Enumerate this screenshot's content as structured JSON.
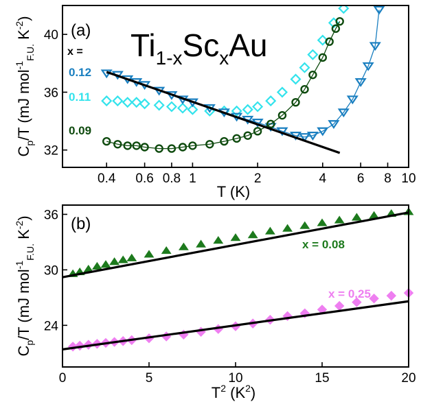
{
  "chart_data": [
    {
      "panel_label": "(a)",
      "type": "scatter",
      "annotation": "Ti1-xScxAu",
      "legend_header": "x =",
      "xlabel": "T (K)",
      "ylabel": "Cp/T (mJ mol-1F.U. K-2)",
      "xscale": "log",
      "xlim": [
        0.25,
        10
      ],
      "ylim": [
        30.8,
        42
      ],
      "xticks": [
        0.4,
        0.6,
        0.8,
        1,
        2,
        4,
        6,
        8,
        10
      ],
      "xtick_labels": [
        "0.4",
        "0.6",
        "0.8",
        "1",
        "2",
        "4",
        "6",
        "8",
        "10"
      ],
      "yticks": [
        32,
        36,
        40
      ],
      "ytick_labels": [
        "32",
        "36",
        "40"
      ],
      "series": [
        {
          "name": "0.12",
          "color": "#1a7fc0",
          "marker": "triangle-down",
          "x": [
            0.4,
            0.45,
            0.5,
            0.55,
            0.6,
            0.7,
            0.8,
            0.9,
            1.0,
            1.2,
            1.4,
            1.6,
            1.8,
            2.0,
            2.3,
            2.6,
            3.0,
            3.3,
            3.6,
            4.0,
            4.5,
            5.0,
            5.5,
            6.0,
            6.5,
            7.0,
            7.3
          ],
          "y": [
            37.3,
            37.2,
            36.9,
            36.7,
            36.5,
            36.1,
            35.8,
            35.5,
            35.3,
            34.9,
            34.6,
            34.3,
            34.1,
            33.9,
            33.6,
            33.3,
            33.0,
            32.9,
            33.0,
            33.3,
            33.8,
            34.6,
            35.5,
            36.7,
            37.8,
            39.2,
            41.7
          ]
        },
        {
          "name": "0.11",
          "color": "#33e3ec",
          "marker": "diamond",
          "x": [
            0.4,
            0.45,
            0.5,
            0.55,
            0.6,
            0.7,
            0.8,
            0.9,
            1.0,
            1.2,
            1.4,
            1.6,
            1.8,
            2.0,
            2.3,
            2.6,
            3.0,
            3.3,
            3.6,
            4.0,
            4.5,
            5.0
          ],
          "y": [
            35.4,
            35.4,
            35.3,
            35.3,
            35.2,
            35.1,
            35.0,
            34.9,
            34.8,
            34.7,
            34.7,
            34.7,
            34.8,
            35.0,
            35.4,
            36.0,
            36.9,
            37.7,
            38.6,
            39.6,
            40.8,
            41.8
          ]
        },
        {
          "name": "0.09",
          "color": "#0e4a0e",
          "marker": "circle",
          "x": [
            0.4,
            0.45,
            0.5,
            0.55,
            0.6,
            0.7,
            0.8,
            0.9,
            1.0,
            1.2,
            1.4,
            1.6,
            1.8,
            2.0,
            2.3,
            2.6,
            3.0,
            3.3,
            3.6,
            4.0,
            4.3,
            4.6,
            4.8
          ],
          "y": [
            32.6,
            32.4,
            32.3,
            32.3,
            32.2,
            32.1,
            32.1,
            32.2,
            32.3,
            32.4,
            32.6,
            32.8,
            33.0,
            33.3,
            33.8,
            34.4,
            35.3,
            36.2,
            37.2,
            38.4,
            39.5,
            40.4,
            40.9
          ]
        }
      ],
      "fit_line": {
        "x": [
          0.4,
          4.8
        ],
        "y": [
          37.4,
          31.8
        ]
      }
    },
    {
      "panel_label": "(b)",
      "type": "scatter",
      "xlabel": "T2 (K2)",
      "ylabel": "Cp/T (mJ mol-1F.U. K-2)",
      "xlim": [
        0,
        20
      ],
      "ylim": [
        19.5,
        37
      ],
      "xticks": [
        0,
        5,
        10,
        15,
        20
      ],
      "xtick_labels": [
        "0",
        "5",
        "10",
        "15",
        "20"
      ],
      "yticks": [
        24,
        30,
        36
      ],
      "ytick_labels": [
        "24",
        "30",
        "36"
      ],
      "series": [
        {
          "name": "x = 0.08",
          "color": "#1d7a1d",
          "marker": "triangle-up",
          "x": [
            0.6,
            1.0,
            1.5,
            2,
            2.5,
            3,
            3.5,
            4,
            5,
            6,
            7,
            8,
            9,
            10,
            11,
            12,
            13,
            14,
            15,
            16,
            17,
            18,
            19,
            20
          ],
          "y": [
            29.6,
            29.8,
            30.1,
            30.4,
            30.6,
            30.9,
            31.1,
            31.3,
            31.7,
            32.1,
            32.5,
            32.8,
            33.2,
            33.5,
            33.8,
            34.2,
            34.5,
            34.8,
            35.1,
            35.4,
            35.7,
            35.9,
            36.1,
            36.3
          ]
        },
        {
          "name": "x = 0.25",
          "color": "#ee7ef0",
          "marker": "diamond",
          "x": [
            0.6,
            1.0,
            1.5,
            2,
            2.5,
            3,
            3.5,
            4,
            5,
            6,
            7,
            8,
            9,
            10,
            11,
            12,
            13,
            14,
            15,
            16,
            17,
            18,
            19,
            20
          ],
          "y": [
            21.7,
            21.8,
            21.9,
            22.0,
            22.1,
            22.2,
            22.3,
            22.4,
            22.6,
            22.8,
            23.0,
            23.3,
            23.6,
            23.9,
            24.2,
            24.6,
            25.0,
            25.3,
            25.7,
            26.1,
            26.5,
            26.9,
            27.2,
            27.5
          ]
        }
      ],
      "fit_lines": [
        {
          "x": [
            0,
            20
          ],
          "y": [
            29.2,
            36.2
          ]
        },
        {
          "x": [
            0,
            20
          ],
          "y": [
            21.4,
            26.6
          ]
        }
      ]
    }
  ]
}
